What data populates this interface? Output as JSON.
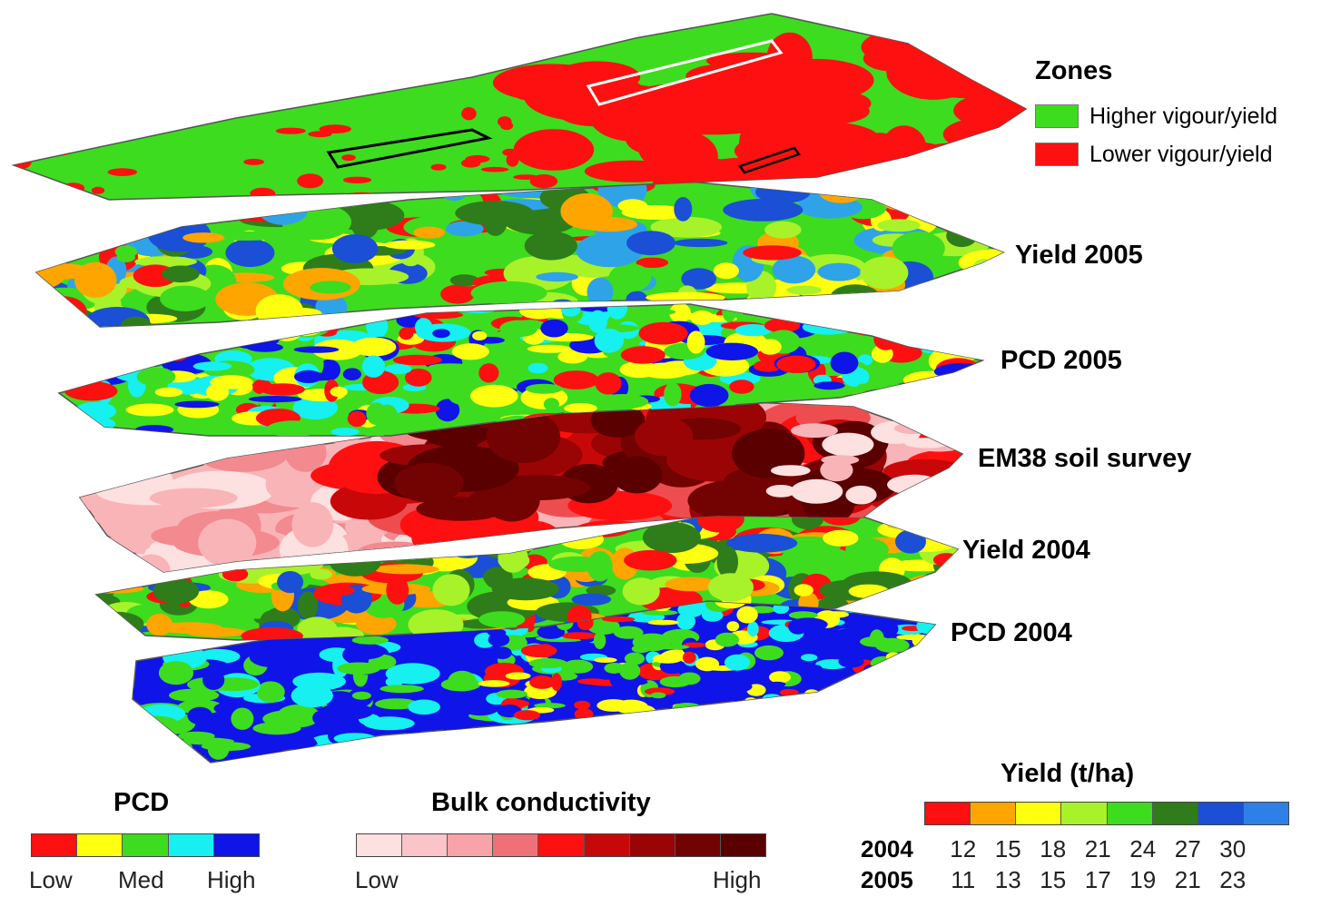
{
  "zones_legend": {
    "title": "Zones",
    "items": [
      {
        "label": "Higher vigour/yield",
        "color": "#3ddc1f"
      },
      {
        "label": "Lower vigour/yield",
        "color": "#ff1010"
      }
    ]
  },
  "layers": [
    {
      "id": "zones",
      "label": "",
      "palette": [
        "#3ddc1f",
        "#ff1010"
      ]
    },
    {
      "id": "yield2005",
      "label": "Yield 2005",
      "palette": [
        "#2fa3e8",
        "#1a4fd6",
        "#2e7d1a",
        "#3ddc1f",
        "#a8f22a",
        "#ffff10",
        "#ffa500",
        "#ff1010"
      ]
    },
    {
      "id": "pcd2005",
      "label": "PCD 2005",
      "palette": [
        "#0f14e8",
        "#16f0f0",
        "#3ddc1f",
        "#ffff10",
        "#ff1010"
      ]
    },
    {
      "id": "em38",
      "label": "EM38 soil survey",
      "palette": [
        "#fde0e0",
        "#f9b4b8",
        "#f28a90",
        "#ee4d50",
        "#ff1010",
        "#c80808",
        "#9a0404",
        "#730202",
        "#5a0000"
      ]
    },
    {
      "id": "yield2004",
      "label": "Yield 2004",
      "palette": [
        "#1a4fd6",
        "#2e7d1a",
        "#3ddc1f",
        "#a8f22a",
        "#ffff10",
        "#ffa500",
        "#ff1010"
      ]
    },
    {
      "id": "pcd2004",
      "label": "PCD 2004",
      "palette": [
        "#0f14e8",
        "#16f0f0",
        "#3ddc1f",
        "#ffff10",
        "#ff1010"
      ]
    }
  ],
  "pcd_legend": {
    "title": "PCD",
    "colors": [
      "#ff1010",
      "#ffff10",
      "#3ddc1f",
      "#16f0f0",
      "#0f14e8"
    ],
    "ticks": [
      "Low",
      "Med",
      "High"
    ]
  },
  "conductivity_legend": {
    "title": "Bulk conductivity",
    "colors": [
      "#fde0e0",
      "#fbc4c8",
      "#f7a3a8",
      "#f07078",
      "#ff1010",
      "#c80808",
      "#9a0404",
      "#730202",
      "#5a0000"
    ],
    "ticks": [
      "Low",
      "High"
    ]
  },
  "yield_legend": {
    "title": "Yield (t/ha)",
    "colors": [
      "#ff1010",
      "#ffa500",
      "#ffff10",
      "#a8f22a",
      "#3ddc1f",
      "#2e7d1a",
      "#1a4fd6",
      "#2f7fe8"
    ],
    "rows": [
      {
        "year": "2004",
        "values": [
          "12",
          "15",
          "18",
          "21",
          "24",
          "27",
          "30"
        ]
      },
      {
        "year": "2005",
        "values": [
          "11",
          "13",
          "15",
          "17",
          "19",
          "21",
          "23"
        ]
      }
    ]
  }
}
